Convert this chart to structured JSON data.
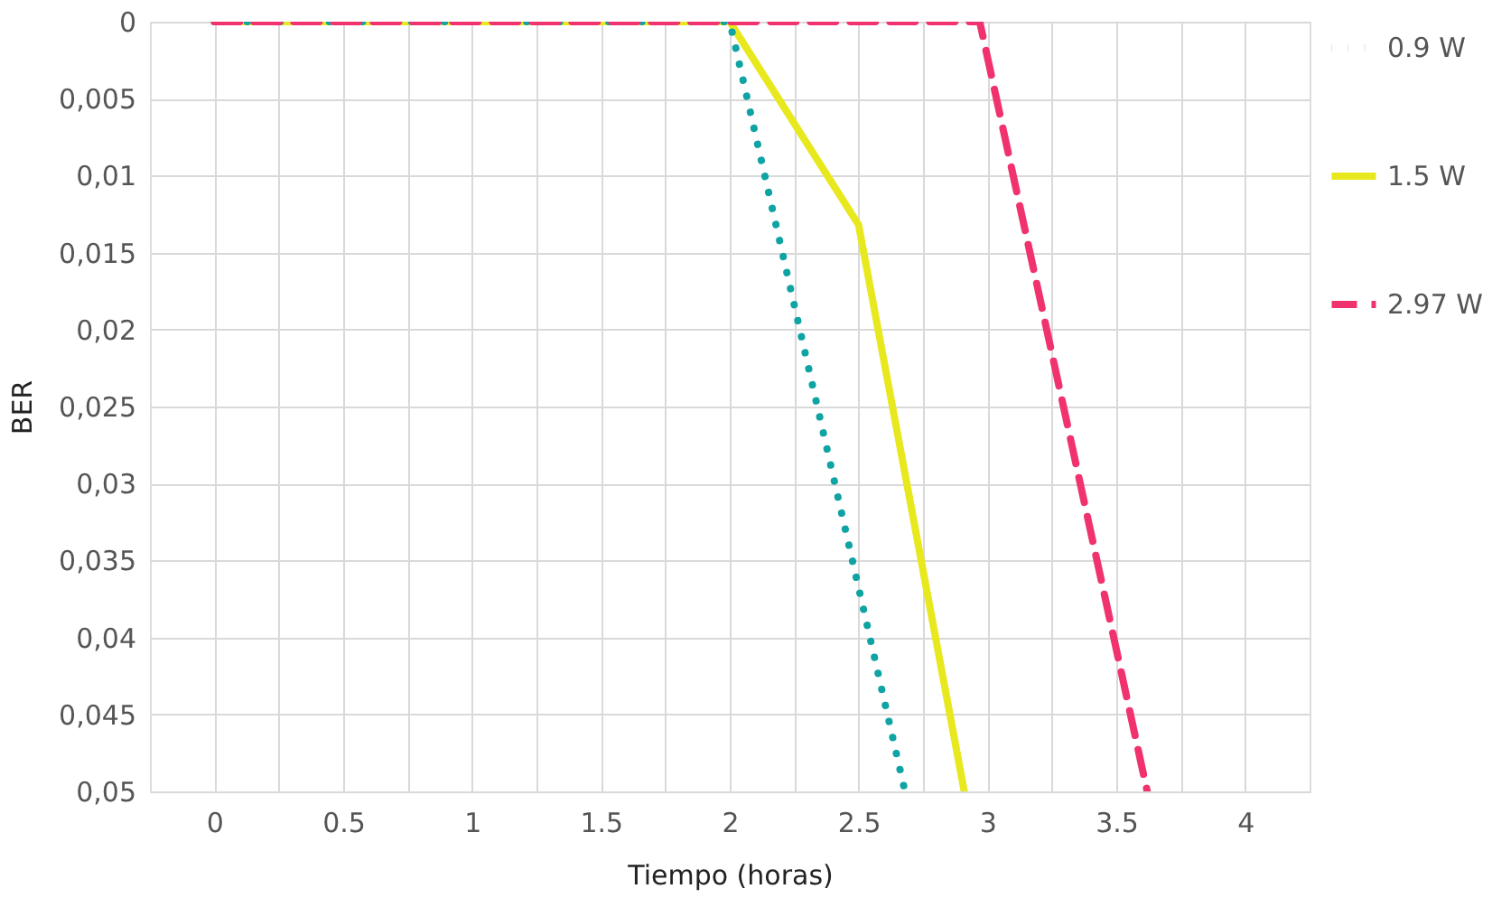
{
  "chart_data": {
    "type": "line",
    "xlabel": "Tiempo (horas)",
    "ylabel": "BER",
    "xlim": [
      -0.25,
      4.25
    ],
    "xticks": [
      0,
      {
        "value": 0.25,
        "label": null
      },
      {
        "value": 0.5,
        "label": "0.5"
      },
      {
        "value": 0.75,
        "label": null
      },
      1,
      {
        "value": 1.25,
        "label": null
      },
      {
        "value": 1.5,
        "label": "1.5"
      },
      {
        "value": 1.75,
        "label": null
      },
      2,
      {
        "value": 2.25,
        "label": null
      },
      {
        "value": 2.5,
        "label": "2.5"
      },
      {
        "value": 2.75,
        "label": null
      },
      3,
      {
        "value": 3.25,
        "label": null
      },
      {
        "value": 3.5,
        "label": "3.5"
      },
      {
        "value": 3.75,
        "label": null
      },
      4
    ],
    "ylim": [
      0.05,
      0
    ],
    "yticks": [
      0,
      {
        "value": 0.005,
        "label": "0,005"
      },
      {
        "value": 0.01,
        "label": "0,01"
      },
      {
        "value": 0.015,
        "label": "0,015"
      },
      {
        "value": 0.02,
        "label": "0,02"
      },
      {
        "value": 0.025,
        "label": "0,025"
      },
      {
        "value": 0.03,
        "label": "0,03"
      },
      {
        "value": 0.035,
        "label": "0,035"
      },
      {
        "value": 0.04,
        "label": "0,04"
      },
      {
        "value": 0.045,
        "label": "0,045"
      },
      {
        "value": 0.05,
        "label": "0,05"
      }
    ],
    "grid": true,
    "legend": "right",
    "marker": "none",
    "series": [
      {
        "name": "0.9 W",
        "color": "#0fa3a3",
        "line_style": "dotted",
        "x": [
          0,
          0.5,
          1,
          1.5,
          2,
          2.68
        ],
        "values": [
          0,
          0,
          0,
          0,
          0,
          0.05
        ]
      },
      {
        "name": "1.5 W",
        "color": "#e8e81e",
        "line_style": "solid",
        "x": [
          0,
          0.5,
          1,
          1.5,
          2,
          2.5,
          2.91
        ],
        "values": [
          0,
          0,
          0,
          0,
          0,
          0.0132,
          0.05
        ]
      },
      {
        "name": "2.97 W",
        "color": "#f0336e",
        "line_style": "dashed",
        "x": [
          0,
          0.5,
          1,
          1.5,
          2,
          2.5,
          2.97,
          3.62
        ],
        "values": [
          0,
          0,
          0,
          0,
          0,
          0,
          0,
          0.05
        ]
      }
    ]
  }
}
